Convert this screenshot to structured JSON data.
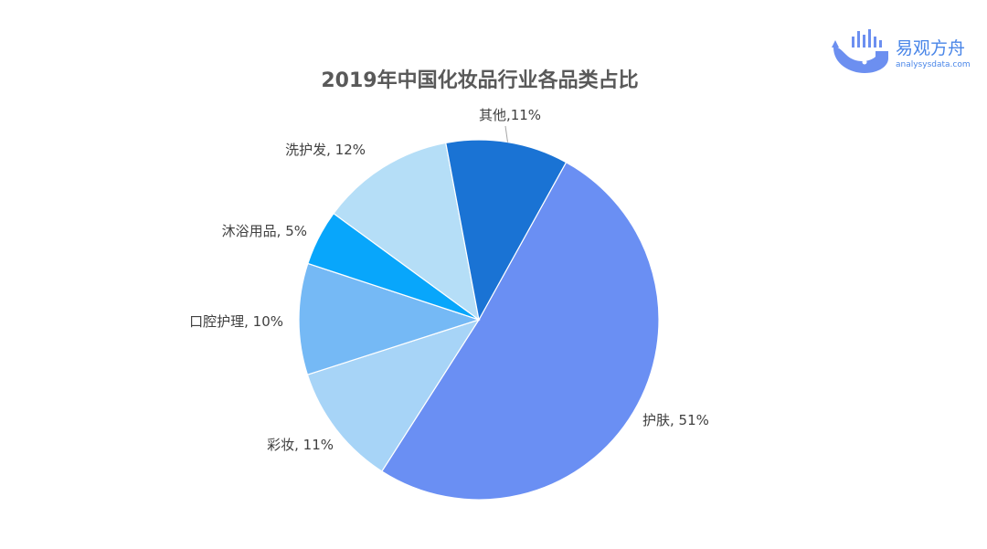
{
  "brand": {
    "name": "易观方舟",
    "site": "analysysdata.com"
  },
  "chart_data": {
    "type": "pie",
    "title": "2019年中国化妆品行业各品类占比",
    "slices": [
      {
        "label": "护肤, 51%",
        "category": "护肤",
        "value": 51,
        "color": "#6a8ff3"
      },
      {
        "label": "彩妆, 11%",
        "category": "彩妆",
        "value": 11,
        "color": "#a7d4f7"
      },
      {
        "label": "口腔护理, 10%",
        "category": "口腔护理",
        "value": 10,
        "color": "#75b9f5"
      },
      {
        "label": "沐浴用品, 5%",
        "category": "沐浴用品",
        "value": 5,
        "color": "#08a6fb"
      },
      {
        "label": "洗护发, 12%",
        "category": "洗护发",
        "value": 12,
        "color": "#b5def7"
      },
      {
        "label": "其他,11%",
        "category": "其他",
        "value": 11,
        "color": "#1a73d4"
      }
    ]
  }
}
